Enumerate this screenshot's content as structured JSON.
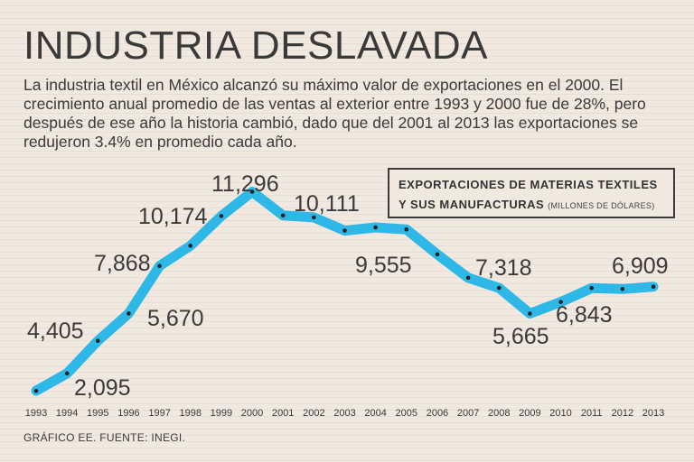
{
  "title": "INDUSTRIA DESLAVADA",
  "subtitle": "La industria textil en México alcanzó su máximo valor de exportaciones en el 2000. El crecimiento anual promedio de las ventas al exterior entre 1993 y 2000 fue de 28%, pero después de ese año la historia cambió, dado que del 2001 al 2013 las exportaciones se redujeron 3.4% en promedio cada año.",
  "legend": {
    "line1": "EXPORTACIONES DE MATERIAS TEXTILES",
    "line2": "Y SUS MANUFACTURAS",
    "unit": "(MILLONES DE DÓLARES)"
  },
  "footer": "GRÁFICO EE. FUENTE: INEGI.",
  "colors": {
    "line": "#2db8e8",
    "marker": "#222222",
    "background": "#f1e8e0",
    "text": "#3a3a3a"
  },
  "chart_data": {
    "type": "line",
    "title": "EXPORTACIONES DE MATERIAS TEXTILES Y SUS MANUFACTURAS (MILLONES DE DÓLARES)",
    "xlabel": "",
    "ylabel": "",
    "categories": [
      "1993",
      "1994",
      "1995",
      "1996",
      "1997",
      "1998",
      "1999",
      "2000",
      "2001",
      "2002",
      "2003",
      "2004",
      "2005",
      "2006",
      "2007",
      "2008",
      "2009",
      "2010",
      "2011",
      "2012",
      "2013"
    ],
    "values": [
      2095,
      2900,
      4405,
      5670,
      7868,
      8800,
      10174,
      11296,
      10200,
      10111,
      9500,
      9650,
      9555,
      8400,
      7318,
      6850,
      5665,
      6200,
      6843,
      6800,
      6909
    ],
    "ylim": [
      1600,
      11900
    ],
    "grid": false,
    "labels": [
      {
        "index": 0,
        "text": "2,095"
      },
      {
        "index": 2,
        "text": "4,405"
      },
      {
        "index": 3,
        "text": "5,670"
      },
      {
        "index": 4,
        "text": "7,868"
      },
      {
        "index": 6,
        "text": "10,174"
      },
      {
        "index": 7,
        "text": "11,296"
      },
      {
        "index": 9,
        "text": "10,111"
      },
      {
        "index": 12,
        "text": "9,555"
      },
      {
        "index": 14,
        "text": "7,318"
      },
      {
        "index": 16,
        "text": "5,665"
      },
      {
        "index": 18,
        "text": "6,843"
      },
      {
        "index": 20,
        "text": "6,909"
      }
    ]
  }
}
